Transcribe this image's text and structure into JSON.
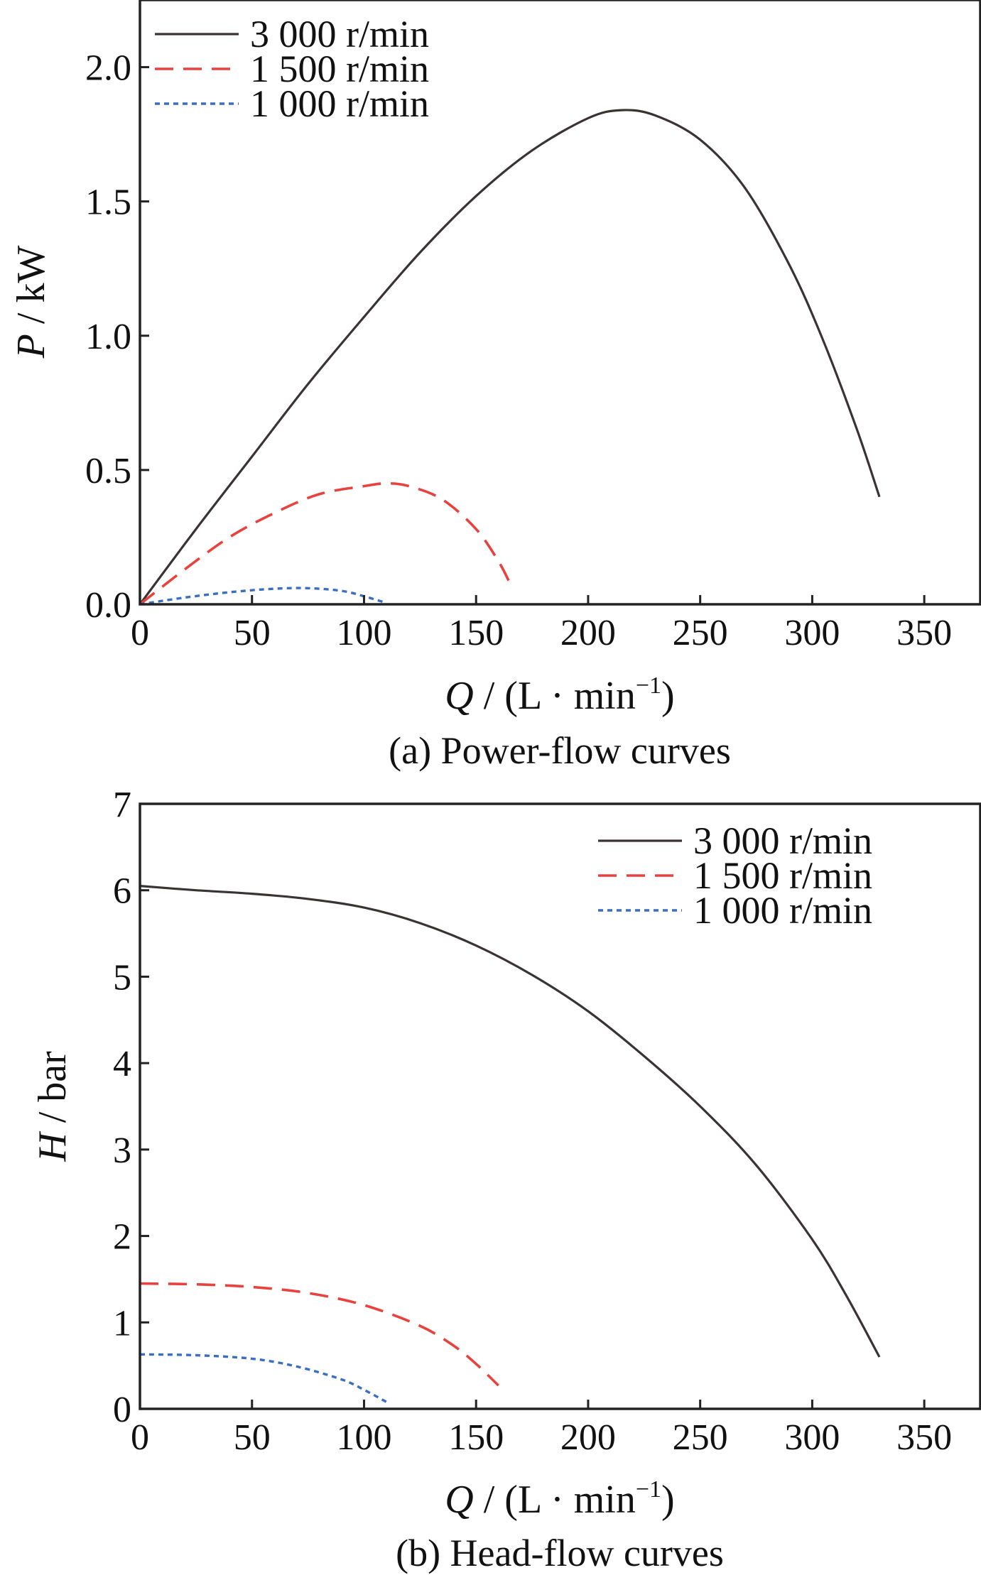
{
  "chart_data": [
    {
      "type": "line",
      "caption": "(a) Power-flow curves",
      "xlabel": {
        "var": "Q",
        "rest": " / (L · min",
        "sup": "−1",
        "close": ")"
      },
      "ylabel": {
        "var": "P",
        "rest": " / kW"
      },
      "xlim": [
        0,
        375
      ],
      "ylim": [
        0,
        2.25
      ],
      "xticks": [
        0,
        50,
        100,
        150,
        200,
        250,
        300,
        350
      ],
      "xtick_labels": [
        "0",
        "50",
        "100",
        "150",
        "200",
        "250",
        "300",
        "350"
      ],
      "yticks": [
        0.0,
        0.5,
        1.0,
        1.5,
        2.0
      ],
      "ytick_labels": [
        "0.0",
        "0.5",
        "1.0",
        "1.5",
        "2.0"
      ],
      "legend_position": "top-left",
      "series": [
        {
          "name": "3 000 r/min",
          "color": "#3a3333",
          "style": "solid",
          "x": [
            0,
            25,
            50,
            75,
            100,
            125,
            150,
            175,
            200,
            215,
            230,
            250,
            270,
            290,
            305,
            320,
            330
          ],
          "y": [
            0.0,
            0.28,
            0.55,
            0.82,
            1.07,
            1.31,
            1.52,
            1.69,
            1.81,
            1.84,
            1.82,
            1.73,
            1.55,
            1.26,
            0.98,
            0.65,
            0.4
          ]
        },
        {
          "name": "1 500 r/min",
          "color": "#e8413e",
          "style": "dashed",
          "x": [
            0,
            20,
            40,
            60,
            80,
            100,
            110,
            120,
            135,
            150,
            160,
            165
          ],
          "y": [
            0.0,
            0.13,
            0.25,
            0.34,
            0.41,
            0.44,
            0.45,
            0.44,
            0.39,
            0.28,
            0.16,
            0.08
          ]
        },
        {
          "name": "1 000 r/min",
          "color": "#3a6ec0",
          "style": "dotted",
          "x": [
            0,
            20,
            40,
            60,
            75,
            90,
            100,
            110
          ],
          "y": [
            0.0,
            0.025,
            0.045,
            0.058,
            0.06,
            0.05,
            0.03,
            0.005
          ]
        }
      ]
    },
    {
      "type": "line",
      "caption": "(b) Head-flow curves",
      "xlabel": {
        "var": "Q",
        "rest": " / (L · min",
        "sup": "−1",
        "close": ")"
      },
      "ylabel": {
        "var": "H",
        "rest": " / bar"
      },
      "xlim": [
        0,
        375
      ],
      "ylim": [
        0,
        7
      ],
      "xticks": [
        0,
        50,
        100,
        150,
        200,
        250,
        300,
        350
      ],
      "xtick_labels": [
        "0",
        "50",
        "100",
        "150",
        "200",
        "250",
        "300",
        "350"
      ],
      "yticks": [
        0,
        1,
        2,
        3,
        4,
        5,
        6,
        7
      ],
      "ytick_labels": [
        "0",
        "1",
        "2",
        "3",
        "4",
        "5",
        "6",
        "7"
      ],
      "legend_position": "top-right",
      "series": [
        {
          "name": "3 000 r/min",
          "color": "#3a3333",
          "style": "solid",
          "x": [
            0,
            25,
            50,
            75,
            100,
            125,
            150,
            175,
            200,
            225,
            250,
            275,
            300,
            315,
            330
          ],
          "y": [
            6.05,
            6.0,
            5.96,
            5.9,
            5.8,
            5.62,
            5.36,
            5.02,
            4.6,
            4.08,
            3.5,
            2.82,
            1.96,
            1.32,
            0.6
          ]
        },
        {
          "name": "1 500 r/min",
          "color": "#e8413e",
          "style": "dashed",
          "x": [
            0,
            25,
            50,
            75,
            100,
            125,
            140,
            150,
            160
          ],
          "y": [
            1.45,
            1.44,
            1.41,
            1.34,
            1.2,
            0.96,
            0.73,
            0.52,
            0.27
          ]
        },
        {
          "name": "1 000 r/min",
          "color": "#3a6ec0",
          "style": "dotted",
          "x": [
            0,
            25,
            50,
            70,
            90,
            100,
            110
          ],
          "y": [
            0.63,
            0.62,
            0.58,
            0.49,
            0.34,
            0.22,
            0.08
          ]
        }
      ]
    }
  ]
}
